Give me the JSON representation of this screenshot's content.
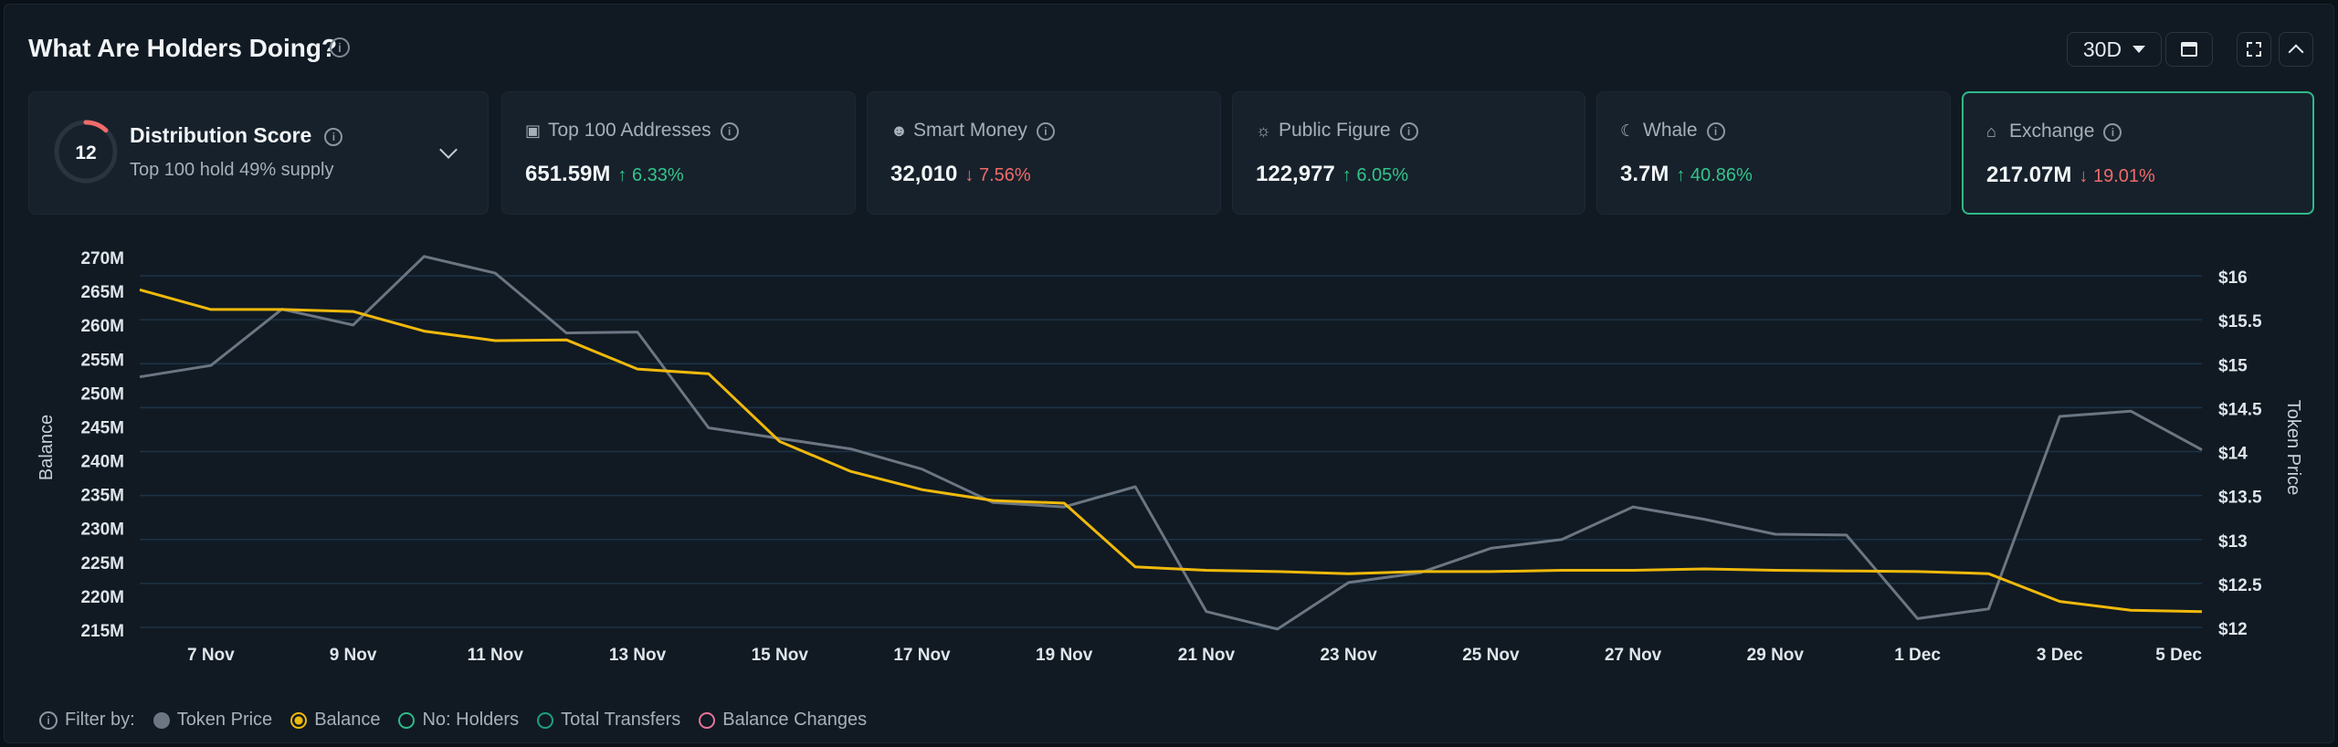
{
  "header": {
    "title": "What Are Holders Doing?",
    "info_glyph": "i",
    "period": "30D",
    "icons": [
      "info-icon",
      "caret-down-icon",
      "calendar-icon",
      "fullscreen-icon",
      "chevron-up-icon"
    ]
  },
  "distribution": {
    "score": "12",
    "title": "Distribution Score",
    "subtitle": "Top 100 hold 49% supply",
    "gauge_fraction": 0.12,
    "gauge_color": "#f26b6b"
  },
  "cards": [
    {
      "label": "Top 100 Addresses",
      "value": "651.59M",
      "change": "6.33%",
      "direction": "up",
      "arrow": "↑",
      "icon": "money-icon",
      "glyph": "▣"
    },
    {
      "label": "Smart Money",
      "value": "32,010",
      "change": "7.56%",
      "direction": "down",
      "arrow": "↓",
      "icon": "mask-icon",
      "glyph": "☻"
    },
    {
      "label": "Public Figure",
      "value": "122,977",
      "change": "6.05%",
      "direction": "up",
      "arrow": "↑",
      "icon": "bulb-icon",
      "glyph": "☼"
    },
    {
      "label": "Whale",
      "value": "3.7M",
      "change": "40.86%",
      "direction": "up",
      "arrow": "↑",
      "icon": "whale-icon",
      "glyph": "☾"
    },
    {
      "label": "Exchange",
      "value": "217.07M",
      "change": "19.01%",
      "direction": "down",
      "arrow": "↓",
      "icon": "bank-icon",
      "glyph": "⌂",
      "active": true
    }
  ],
  "chart_data": {
    "type": "line",
    "x": [
      "6 Nov",
      "7 Nov",
      "8 Nov",
      "9 Nov",
      "10 Nov",
      "11 Nov",
      "12 Nov",
      "13 Nov",
      "14 Nov",
      "15 Nov",
      "16 Nov",
      "17 Nov",
      "18 Nov",
      "19 Nov",
      "20 Nov",
      "21 Nov",
      "22 Nov",
      "23 Nov",
      "24 Nov",
      "25 Nov",
      "26 Nov",
      "27 Nov",
      "28 Nov",
      "29 Nov",
      "30 Nov",
      "1 Dec",
      "2 Dec",
      "3 Dec",
      "4 Dec",
      "5 Dec"
    ],
    "x_tick_labels": [
      "7 Nov",
      "9 Nov",
      "11 Nov",
      "13 Nov",
      "15 Nov",
      "17 Nov",
      "19 Nov",
      "21 Nov",
      "23 Nov",
      "25 Nov",
      "27 Nov",
      "29 Nov",
      "1 Dec",
      "3 Dec",
      "5 Dec"
    ],
    "series": [
      {
        "name": "Balance",
        "axis": "left",
        "color": "#f0b90b",
        "values": [
          265.1,
          262.2,
          262.2,
          261.9,
          259.0,
          257.6,
          257.7,
          253.4,
          252.7,
          242.7,
          238.3,
          235.6,
          234.0,
          233.6,
          224.2,
          223.7,
          223.5,
          223.2,
          223.5,
          223.5,
          223.7,
          223.7,
          223.9,
          223.7,
          223.6,
          223.5,
          223.2,
          219.1,
          217.8,
          217.6
        ]
      },
      {
        "name": "Token Price",
        "axis": "right",
        "color": "#6b7682",
        "values": [
          14.85,
          14.98,
          15.62,
          15.44,
          16.22,
          16.03,
          15.35,
          15.36,
          14.27,
          14.15,
          14.03,
          13.8,
          13.42,
          13.37,
          13.6,
          12.18,
          11.98,
          12.51,
          12.62,
          12.9,
          13.0,
          13.37,
          13.23,
          13.06,
          13.05,
          12.1,
          12.21,
          14.4,
          14.46,
          14.02
        ]
      }
    ],
    "y_left": {
      "label": "Balance",
      "min": 215,
      "max": 270,
      "ticks": [
        "270M",
        "265M",
        "260M",
        "255M",
        "250M",
        "245M",
        "240M",
        "235M",
        "230M",
        "225M",
        "220M",
        "215M"
      ]
    },
    "y_right": {
      "label": "Token Price",
      "min": 12,
      "max": 16,
      "ticks": [
        "$16",
        "$15.5",
        "$15",
        "$14.5",
        "$14",
        "$13.5",
        "$13",
        "$12.5",
        "$12"
      ]
    },
    "grid": true
  },
  "legend": {
    "filter_label": "Filter by:",
    "items": [
      {
        "label": "Token Price",
        "style": "filled",
        "color": "#6b7682"
      },
      {
        "label": "Balance",
        "style": "selected",
        "color": "#f0b90b"
      },
      {
        "label": "No: Holders",
        "style": "ring",
        "color": "#2fb889"
      },
      {
        "label": "Total Transfers",
        "style": "ring",
        "color": "#1f9e84"
      },
      {
        "label": "Balance Changes",
        "style": "ring",
        "color": "#e6749a"
      }
    ]
  }
}
